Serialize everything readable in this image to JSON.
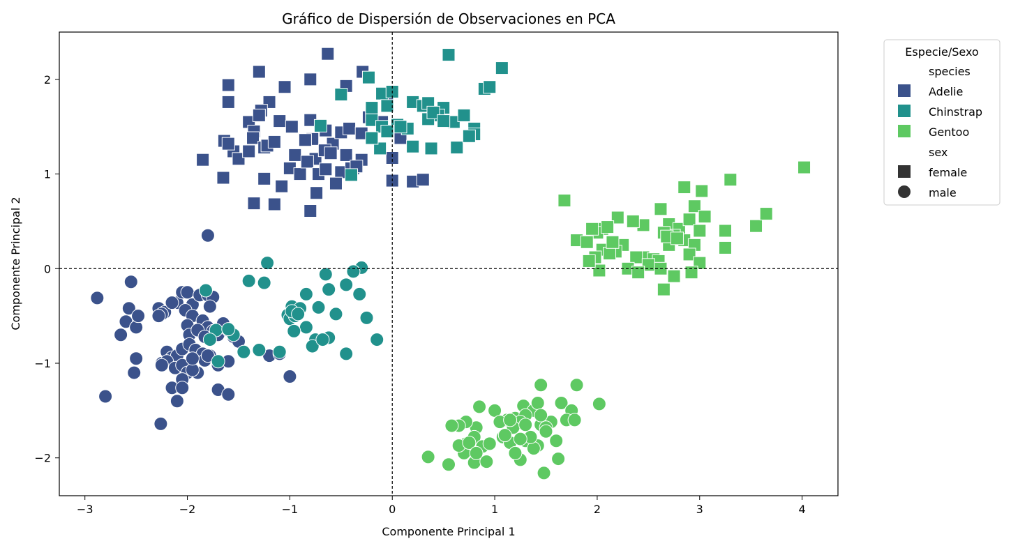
{
  "chart_data": {
    "type": "scatter",
    "title": "Gráfico de Dispersión de Observaciones en PCA",
    "xlabel": "Componente Principal 1",
    "ylabel": "Componente Principal 2",
    "xlim": [
      -3.25,
      4.35
    ],
    "ylim": [
      -2.4,
      2.5
    ],
    "xticks": [
      -3,
      -2,
      -1,
      0,
      1,
      2,
      3,
      4
    ],
    "yticks": [
      -2,
      -1,
      0,
      1,
      2
    ],
    "xtick_labels": [
      "−3",
      "−2",
      "−1",
      "0",
      "1",
      "2",
      "3",
      "4"
    ],
    "ytick_labels": [
      "−2",
      "−1",
      "0",
      "1",
      "2"
    ],
    "reference_lines": {
      "x": 0,
      "y": 0,
      "style": "dashed"
    },
    "grid": false,
    "legend": {
      "title": "Especie/Sexo",
      "placement": "outside-upper-right",
      "hue_heading": "species",
      "style_heading": "sex",
      "species": [
        {
          "label": "Adelie",
          "color": "#3b528b"
        },
        {
          "label": "Chinstrap",
          "color": "#21918c"
        },
        {
          "label": "Gentoo",
          "color": "#5ec962"
        }
      ],
      "sex": [
        {
          "label": "female",
          "marker": "square"
        },
        {
          "label": "male",
          "marker": "circle"
        }
      ]
    },
    "series": [
      {
        "name": "Adelie",
        "sex": "female",
        "marker": "square",
        "color": "#3b528b",
        "x": [
          -0.63,
          -0.29,
          -0.45,
          -0.8,
          -1.05,
          -1.3,
          -1.6,
          -1.6,
          -1.2,
          -1.28,
          -1.4,
          -1.35,
          -1.3,
          -1.1,
          -0.98,
          -0.8,
          -0.78,
          -0.65,
          -0.58,
          -0.5,
          -0.42,
          -0.3,
          -0.23,
          -0.2,
          -1.64,
          -1.55,
          -1.6,
          -1.5,
          -1.4,
          -1.36,
          -1.25,
          -1.22,
          -1.15,
          -1.0,
          -0.95,
          -0.85,
          -0.75,
          -0.66,
          -0.6,
          -0.5,
          -0.45,
          -0.38,
          -0.3,
          -1.85,
          -1.65,
          -1.25,
          -1.08,
          -0.9,
          -0.83,
          -0.72,
          -0.65,
          -0.55,
          -0.4,
          -0.35,
          -1.35,
          -1.15,
          -0.8,
          -0.74,
          0.0,
          0.05,
          0.2,
          0.3,
          -0.1,
          0.0,
          0.08,
          -0.05
        ],
        "y": [
          2.27,
          2.08,
          1.93,
          2.0,
          1.92,
          2.08,
          1.94,
          1.76,
          1.76,
          1.67,
          1.55,
          1.45,
          1.62,
          1.56,
          1.5,
          1.57,
          1.37,
          1.46,
          1.32,
          1.44,
          1.48,
          1.43,
          1.6,
          1.63,
          1.35,
          1.24,
          1.32,
          1.16,
          1.24,
          1.38,
          1.28,
          1.3,
          1.34,
          1.06,
          1.2,
          1.36,
          1.16,
          1.25,
          1.22,
          1.02,
          1.2,
          1.06,
          1.15,
          1.15,
          0.96,
          0.95,
          0.87,
          1.0,
          1.13,
          1.0,
          1.05,
          0.9,
          1.06,
          1.08,
          0.69,
          0.68,
          0.61,
          0.8,
          0.93,
          1.45,
          0.92,
          0.94,
          1.55,
          1.17,
          1.38,
          1.83
        ]
      },
      {
        "name": "Adelie",
        "sex": "male",
        "marker": "circle",
        "color": "#3b528b",
        "x": [
          -1.8,
          -2.88,
          -2.55,
          -2.57,
          -2.6,
          -2.5,
          -2.65,
          -2.48,
          -2.28,
          -2.22,
          -2.1,
          -2.05,
          -2.0,
          -1.95,
          -1.88,
          -1.8,
          -1.75,
          -1.78,
          -2.02,
          -2.15,
          -2.25,
          -2.28,
          -1.95,
          -1.85,
          -1.8,
          -1.75,
          -2.0,
          -1.98,
          -1.9,
          -1.83,
          -1.7,
          -1.65,
          -1.6,
          -1.55,
          -1.5,
          -2.2,
          -2.15,
          -2.1,
          -2.05,
          -1.98,
          -1.92,
          -1.85,
          -2.5,
          -2.52,
          -2.25,
          -2.2,
          -2.12,
          -2.05,
          -2.0,
          -1.9,
          -1.83,
          -1.78,
          -1.7,
          -1.6,
          -2.05,
          -2.15,
          -2.25,
          -1.95,
          -2.8,
          -1.7,
          -1.6,
          -1.2,
          -1.1,
          -1.0,
          -2.05,
          -2.1,
          -1.95,
          -1.8,
          -1.45,
          -2.26
        ],
        "y": [
          0.35,
          -0.31,
          -0.14,
          -0.42,
          -0.56,
          -0.62,
          -0.7,
          -0.5,
          -0.42,
          -0.46,
          -0.36,
          -0.25,
          -0.25,
          -0.38,
          -0.28,
          -0.28,
          -0.3,
          -0.4,
          -0.44,
          -0.36,
          -0.48,
          -0.5,
          -0.5,
          -0.55,
          -0.62,
          -0.66,
          -0.6,
          -0.7,
          -0.65,
          -0.72,
          -0.7,
          -0.58,
          -0.65,
          -0.72,
          -0.77,
          -0.88,
          -0.94,
          -0.92,
          -0.85,
          -0.8,
          -0.86,
          -0.9,
          -0.95,
          -1.1,
          -1.0,
          -0.98,
          -1.05,
          -1.02,
          -1.1,
          -1.1,
          -0.97,
          -0.92,
          -1.02,
          -0.98,
          -1.17,
          -1.26,
          -1.02,
          -1.07,
          -1.35,
          -1.28,
          -1.33,
          -0.92,
          -0.9,
          -1.14,
          -1.26,
          -1.4,
          -0.95,
          -0.92,
          -0.88,
          -1.64
        ]
      },
      {
        "name": "Chinstrap",
        "sex": "female",
        "marker": "square",
        "color": "#21918c",
        "x": [
          -0.23,
          -0.5,
          -0.2,
          -0.1,
          -0.05,
          0.0,
          0.2,
          0.3,
          0.35,
          0.5,
          0.55,
          0.45,
          0.6,
          0.7,
          0.8,
          0.9,
          0.95,
          1.07,
          -0.7,
          -0.2,
          -0.1,
          0.05,
          0.15,
          0.35,
          0.4,
          0.5,
          0.8,
          0.2,
          0.38,
          0.63,
          0.75,
          -0.4,
          -0.12,
          -0.2,
          -0.05,
          0.08
        ],
        "y": [
          2.02,
          1.84,
          1.7,
          1.85,
          1.72,
          1.87,
          1.76,
          1.72,
          1.75,
          1.7,
          2.26,
          1.62,
          1.55,
          1.62,
          1.48,
          1.9,
          1.92,
          2.12,
          1.51,
          1.57,
          1.5,
          1.52,
          1.48,
          1.58,
          1.65,
          1.56,
          1.42,
          1.29,
          1.27,
          1.28,
          1.4,
          0.99,
          1.27,
          1.38,
          1.45,
          1.5
        ]
      },
      {
        "name": "Chinstrap",
        "sex": "male",
        "marker": "circle",
        "color": "#21918c",
        "x": [
          -1.22,
          -1.4,
          -1.25,
          -0.3,
          -0.65,
          -0.38,
          -0.45,
          -0.62,
          -0.32,
          -0.84,
          -0.98,
          -0.9,
          -0.72,
          -1.02,
          -1.0,
          -0.95,
          -0.84,
          -0.96,
          -0.62,
          -0.75,
          -0.78,
          -0.68,
          -0.55,
          -0.25,
          -0.45,
          -0.15,
          -1.72,
          -1.78,
          -1.55,
          -1.6,
          -1.3,
          -1.1,
          -1.45,
          -1.7,
          -1.82,
          -0.98,
          -0.92
        ],
        "y": [
          0.06,
          -0.13,
          -0.15,
          0.01,
          -0.06,
          -0.03,
          -0.17,
          -0.22,
          -0.27,
          -0.27,
          -0.4,
          -0.42,
          -0.41,
          -0.49,
          -0.53,
          -0.5,
          -0.62,
          -0.66,
          -0.73,
          -0.75,
          -0.82,
          -0.75,
          -0.48,
          -0.52,
          -0.9,
          -0.75,
          -0.65,
          -0.75,
          -0.7,
          -0.64,
          -0.86,
          -0.88,
          -0.88,
          -0.98,
          -0.23,
          -0.45,
          -0.48
        ]
      },
      {
        "name": "Gentoo",
        "sex": "female",
        "marker": "square",
        "color": "#5ec962",
        "x": [
          1.68,
          2.85,
          3.3,
          4.02,
          3.02,
          2.95,
          3.05,
          2.62,
          2.45,
          2.2,
          2.35,
          2.05,
          2.0,
          2.1,
          2.25,
          1.95,
          1.8,
          1.9,
          2.7,
          2.8,
          2.9,
          3.0,
          3.25,
          3.55,
          3.65,
          2.75,
          2.65,
          2.85,
          2.95,
          2.7,
          2.45,
          2.55,
          2.6,
          2.38,
          2.18,
          2.05,
          1.98,
          2.12,
          2.3,
          2.5,
          2.62,
          2.75,
          2.9,
          3.0,
          2.02,
          2.68,
          2.4,
          2.65,
          2.92,
          3.25,
          2.78,
          2.15,
          1.92
        ],
        "y": [
          0.72,
          0.86,
          0.94,
          1.07,
          0.82,
          0.66,
          0.55,
          0.63,
          0.46,
          0.54,
          0.5,
          0.42,
          0.38,
          0.44,
          0.25,
          0.42,
          0.3,
          0.28,
          0.47,
          0.42,
          0.52,
          0.4,
          0.4,
          0.45,
          0.58,
          0.35,
          0.38,
          0.3,
          0.25,
          0.25,
          0.12,
          0.1,
          0.08,
          0.12,
          0.18,
          0.2,
          0.12,
          0.16,
          0.0,
          0.04,
          0.0,
          -0.08,
          0.15,
          0.06,
          -0.02,
          0.34,
          -0.04,
          -0.22,
          -0.04,
          0.22,
          0.32,
          0.28,
          0.08
        ]
      },
      {
        "name": "Gentoo",
        "sex": "male",
        "marker": "circle",
        "color": "#5ec962",
        "x": [
          1.45,
          1.8,
          2.02,
          1.65,
          1.75,
          1.7,
          1.78,
          1.55,
          1.28,
          1.38,
          1.42,
          1.12,
          1.0,
          1.05,
          1.2,
          1.3,
          1.45,
          1.5,
          1.25,
          1.18,
          1.08,
          0.85,
          0.82,
          0.72,
          0.65,
          0.58,
          0.8,
          0.88,
          0.72,
          0.7,
          0.65,
          0.95,
          1.15,
          1.3,
          1.42,
          1.5,
          1.6,
          0.35,
          0.55,
          0.8,
          0.92,
          1.25,
          1.38,
          1.48,
          1.62,
          1.2,
          1.35,
          0.75,
          0.82,
          1.1,
          1.3,
          1.45,
          1.25,
          1.15
        ],
        "y": [
          -1.23,
          -1.23,
          -1.43,
          -1.42,
          -1.5,
          -1.6,
          -1.6,
          -1.62,
          -1.45,
          -1.5,
          -1.42,
          -1.6,
          -1.5,
          -1.62,
          -1.58,
          -1.55,
          -1.65,
          -1.68,
          -1.62,
          -1.68,
          -1.78,
          -1.46,
          -1.68,
          -1.62,
          -1.66,
          -1.66,
          -1.78,
          -1.88,
          -1.85,
          -1.95,
          -1.87,
          -1.85,
          -1.84,
          -1.82,
          -1.87,
          -1.72,
          -1.82,
          -1.99,
          -2.07,
          -2.05,
          -2.04,
          -2.02,
          -1.9,
          -2.16,
          -2.01,
          -1.95,
          -1.78,
          -1.84,
          -1.95,
          -1.76,
          -1.65,
          -1.55,
          -1.8,
          -1.6
        ]
      }
    ]
  }
}
